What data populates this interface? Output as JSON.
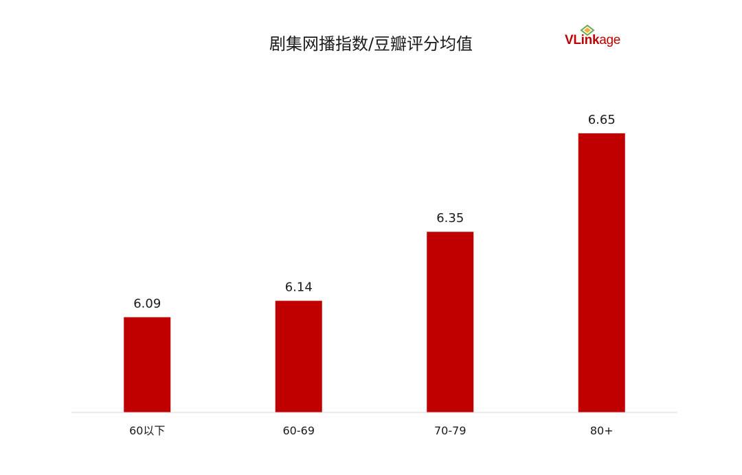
{
  "chart_data": {
    "type": "bar",
    "title": "剧集网播指数/豆瓣评分均值",
    "categories": [
      "60以下",
      "60-69",
      "70-79",
      "80+"
    ],
    "values": [
      6.09,
      6.14,
      6.35,
      6.65
    ],
    "data_labels": [
      "6.09",
      "6.14",
      "6.35",
      "6.65"
    ],
    "xlabel": "",
    "ylabel": "",
    "ylim": [
      5.8,
      6.7
    ],
    "grid": false,
    "legend": "none",
    "bar_color": "#c00000"
  },
  "logo": {
    "text_a": "VLink",
    "text_b": "age",
    "color": "#c00000",
    "mark_color": "#6aa84f"
  }
}
